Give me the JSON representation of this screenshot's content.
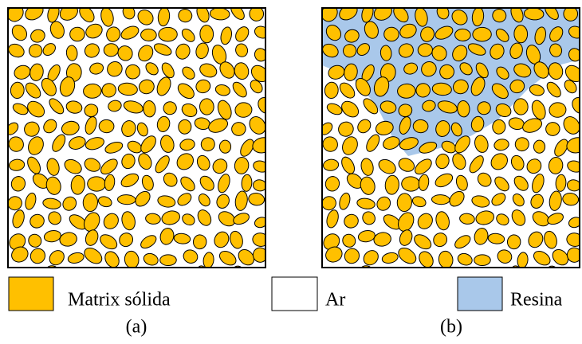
{
  "legend": [
    {
      "label": "Matrix sólida"
    },
    {
      "label": "Ar"
    },
    {
      "label": "Resina"
    }
  ],
  "captions": [
    "(a)",
    "(b)"
  ]
}
